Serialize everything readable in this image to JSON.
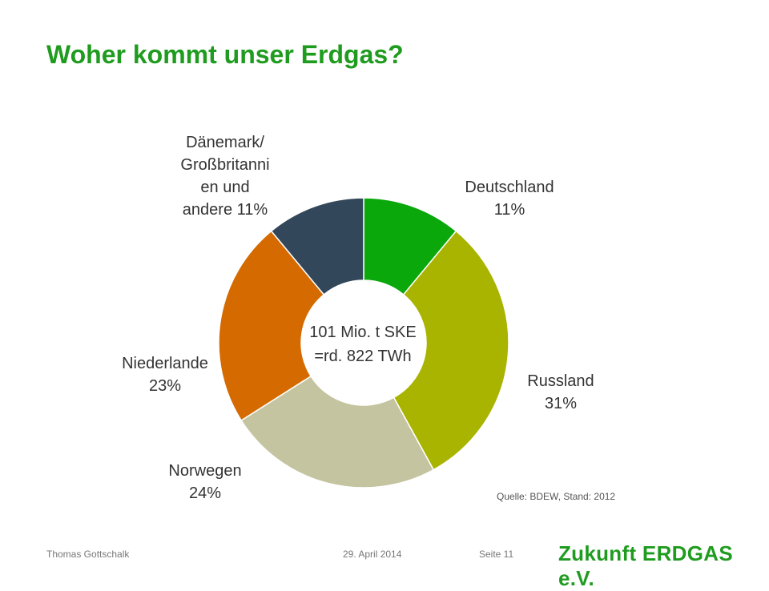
{
  "slide": {
    "title": "Woher kommt unser Erdgas?",
    "source": "Quelle: BDEW, Stand: 2012",
    "footer": {
      "author": "Thomas Gottschalk",
      "date": "29. April 2014",
      "page": "Seite 11"
    },
    "logo_text": "Zukunft ERDGAS e.V.",
    "title_color": "#1f9c1f"
  },
  "chart_data": {
    "type": "pie",
    "variant": "donut",
    "center_label": [
      "101 Mio. t SKE",
      "=rd. 822 TWh"
    ],
    "unit": "%",
    "slices": [
      {
        "name": "Deutschland",
        "value": 11,
        "label_lines": [
          "Deutschland",
          "11%"
        ],
        "color": "#0aa80a"
      },
      {
        "name": "Russland",
        "value": 31,
        "label_lines": [
          "Russland",
          "31%"
        ],
        "color": "#a8b400"
      },
      {
        "name": "Norwegen",
        "value": 24,
        "label_lines": [
          "Norwegen",
          "24%"
        ],
        "color": "#c4c4a0"
      },
      {
        "name": "Niederlande",
        "value": 23,
        "label_lines": [
          "Niederlande",
          "23%"
        ],
        "color": "#d46a00"
      },
      {
        "name": "Dänemark/ Großbritannien und andere",
        "value": 11,
        "label_lines": [
          "Dänemark/",
          "Großbritanni",
          "en und",
          "andere 11%"
        ],
        "color": "#33475b"
      }
    ]
  }
}
